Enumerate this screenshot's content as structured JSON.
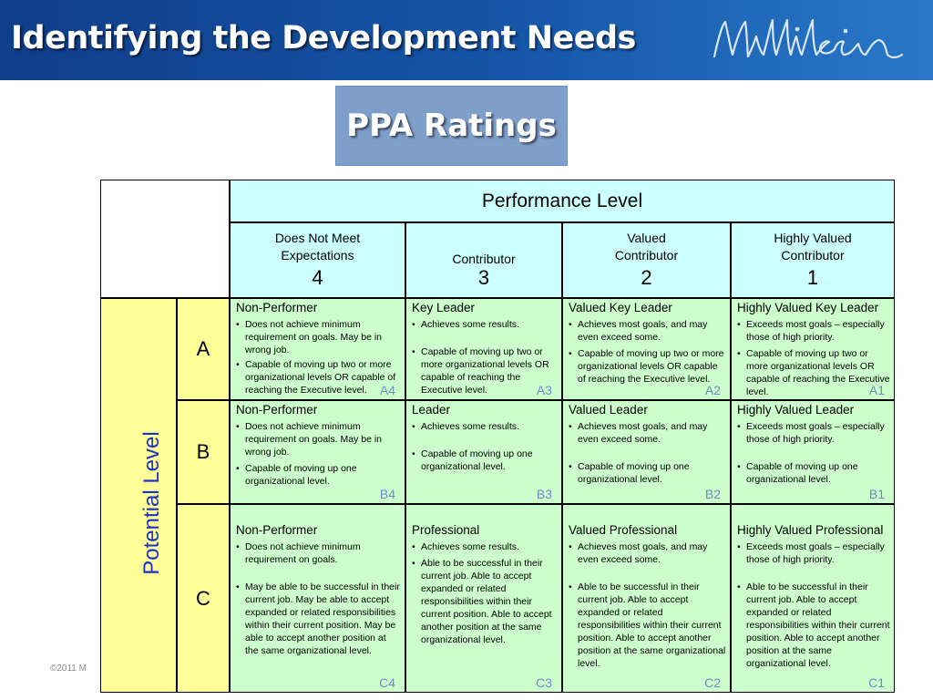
{
  "slide": {
    "title": "Identifying the Development Needs",
    "logo_text": "Milliken",
    "subtitle": "PPA Ratings",
    "copyright": "©2011 M"
  },
  "colors": {
    "header": "#1656a8",
    "cyan": "#ccffff",
    "green": "#ccffcc",
    "yellow": "#ffff99",
    "potential_label": "#1c31c7",
    "code": "#6d8cc7"
  },
  "table": {
    "performance_header": "Performance Level",
    "potential_header": "Potential Level",
    "columns": [
      {
        "line1": "Does Not Meet",
        "line2": "Expectations",
        "number": "4"
      },
      {
        "line1": "",
        "line2": "Contributor",
        "number": "3"
      },
      {
        "line1": "Valued",
        "line2": "Contributor",
        "number": "2"
      },
      {
        "line1": "Highly Valued",
        "line2": "Contributor",
        "number": "1"
      }
    ],
    "rows": [
      {
        "letter": "A",
        "cells": [
          {
            "title": "Non-Performer",
            "bullets": [
              "Does not achieve minimum requirement on goals.  May be in wrong job.",
              "Capable of moving up two or more organizational levels OR capable of reaching the Executive level."
            ],
            "code": "A4"
          },
          {
            "title": "Key Leader",
            "bullets": [
              "Achieves some results.",
              "Capable of moving up two or more organizational levels OR capable of reaching the Executive level."
            ],
            "code": "A3"
          },
          {
            "title": "Valued Key Leader",
            "bullets": [
              "Achieves most goals, and may even exceed some.",
              "Capable of moving up two or more organizational levels OR capable of reaching the Executive level."
            ],
            "code": "A2"
          },
          {
            "title": "Highly Valued Key Leader",
            "bullets": [
              "Exceeds most goals – especially those of high priority.",
              "Capable of moving up two or more organizational levels OR capable of reaching the Executive level."
            ],
            "code": "A1"
          }
        ]
      },
      {
        "letter": "B",
        "cells": [
          {
            "title": "Non-Performer",
            "bullets": [
              "Does not achieve minimum requirement on goals. May be in wrong job.",
              "Capable of moving up one organizational level."
            ],
            "code": "B4"
          },
          {
            "title": "Leader",
            "bullets": [
              "Achieves some results.",
              "Capable of moving up one organizational level."
            ],
            "code": "B3"
          },
          {
            "title": "Valued Leader",
            "bullets": [
              "Achieves most goals, and may even exceed some.",
              "Capable of moving up one organizational level."
            ],
            "code": "B2"
          },
          {
            "title": "Highly Valued Leader",
            "bullets": [
              "Exceeds most goals – especially those of high priority.",
              "Capable of moving up one organizational level."
            ],
            "code": "B1"
          }
        ]
      },
      {
        "letter": "C",
        "cells": [
          {
            "title": "Non-Performer",
            "bullets": [
              "Does not achieve minimum requirement on goals.",
              "May be able to be successful in their current job. May be able to accept expanded or related responsibilities within their current position. May be able to accept another position at the same organizational level."
            ],
            "code": "C4"
          },
          {
            "title": "Professional",
            "bullets": [
              "Achieves some results.",
              "Able to be successful in their current job. Able to accept expanded or related responsibilities within their current position. Able to accept another position at the same organizational level."
            ],
            "code": "C3"
          },
          {
            "title": "Valued Professional",
            "bullets": [
              "Achieves most goals, and may even exceed some.",
              "Able to be successful in their current job. Able to accept expanded or related responsibilities within their current position. Able to accept another position at the same organizational level."
            ],
            "code": "C2"
          },
          {
            "title": "Highly Valued  Professional",
            "bullets": [
              "Exceeds most goals – especially those of high priority.",
              "Able to be successful in their current job. Able to accept expanded or related responsibilities within their current position. Able to accept another position at the same organizational level."
            ],
            "code": "C1"
          }
        ]
      }
    ]
  }
}
